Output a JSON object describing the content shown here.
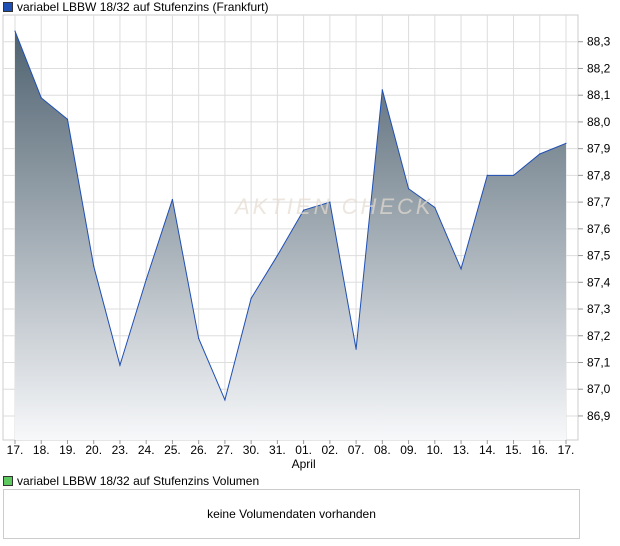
{
  "legend_main": {
    "label": "variabel LBBW 18/32 auf Stufenzins (Frankfurt)",
    "color": "#1f4fb5"
  },
  "legend_volume": {
    "label": "variabel LBBW 18/32 auf Stufenzins Volumen",
    "color": "#5ec95e"
  },
  "volume_message": "keine Volumendaten vorhanden",
  "watermark": "AKTIEN CHECK",
  "chart_data": {
    "type": "area",
    "title": "variabel LBBW 18/32 auf Stufenzins (Frankfurt)",
    "categories": [
      "17.",
      "18.",
      "19.",
      "20.",
      "23.",
      "24.",
      "25.",
      "26.",
      "27.",
      "30.",
      "31.",
      "01.",
      "02.",
      "07.",
      "08.",
      "09.",
      "10.",
      "13.",
      "14.",
      "15.",
      "16.",
      "17."
    ],
    "month_label": "April",
    "values": [
      88.34,
      88.09,
      88.01,
      87.46,
      87.09,
      87.41,
      87.71,
      87.19,
      86.96,
      87.34,
      87.5,
      87.67,
      87.7,
      87.15,
      88.12,
      87.75,
      87.68,
      87.45,
      87.8,
      87.8,
      87.88,
      87.92
    ],
    "yticks": [
      "86,9",
      "87,0",
      "87,1",
      "87,2",
      "87,3",
      "87,4",
      "87,5",
      "87,6",
      "87,7",
      "87,8",
      "87,9",
      "88,0",
      "88,1",
      "88,2",
      "88,3"
    ],
    "ytick_values": [
      86.9,
      87.0,
      87.1,
      87.2,
      87.3,
      87.4,
      87.5,
      87.6,
      87.7,
      87.8,
      87.9,
      88.0,
      88.1,
      88.2,
      88.3
    ],
    "ylim": [
      86.81,
      88.4
    ],
    "grid": true,
    "line_color": "#1f4fb5",
    "fill_top": "#4f6270",
    "fill_bottom": "#f7f8fa"
  }
}
